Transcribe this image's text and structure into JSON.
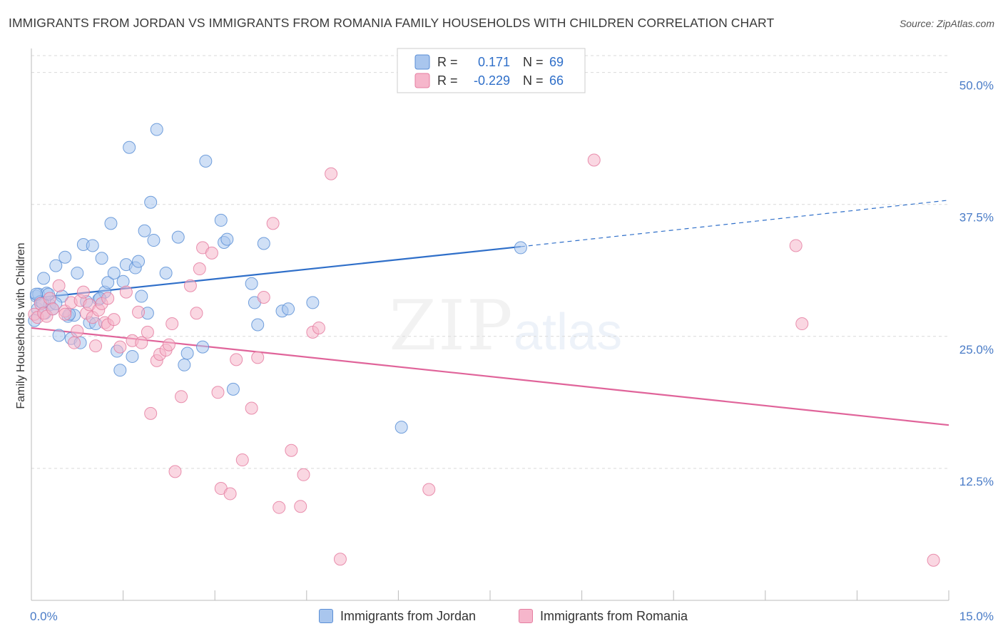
{
  "title": "IMMIGRANTS FROM JORDAN VS IMMIGRANTS FROM ROMANIA FAMILY HOUSEHOLDS WITH CHILDREN CORRELATION CHART",
  "source": "Source: ZipAtlas.com",
  "watermark": {
    "zip": "ZIP",
    "atlas": "atlas"
  },
  "colors": {
    "jordan_fill": "#a9c6ee",
    "jordan_stroke": "#5b8fd6",
    "jordan_line": "#2f6fc9",
    "romania_fill": "#f6b6cb",
    "romania_stroke": "#e57ea1",
    "romania_line": "#e0649a",
    "grid": "#d9d9d9",
    "tick_text": "#4a7cc7"
  },
  "legend": {
    "rows": [
      {
        "r_label": "R =",
        "r_value": "0.171",
        "n_label": "N =",
        "n_value": "69"
      },
      {
        "r_label": "R =",
        "r_value": "-0.229",
        "n_label": "N =",
        "n_value": "66"
      }
    ]
  },
  "chart_data": {
    "type": "scatter",
    "ylabel": "Family Households with Children",
    "xlim": [
      0,
      15
    ],
    "ylim": [
      0,
      52
    ],
    "x_tick_labels": [
      {
        "value": 0,
        "label": "0.0%"
      },
      {
        "value": 15,
        "label": "15.0%"
      }
    ],
    "y_ticks": [
      {
        "value": 12.5,
        "label": "12.5%"
      },
      {
        "value": 25,
        "label": "25.0%"
      },
      {
        "value": 37.5,
        "label": "37.5%"
      },
      {
        "value": 50,
        "label": "50.0%"
      }
    ],
    "grid": "horizontal dashed",
    "legend_position": "top-center",
    "series": [
      {
        "name": "Immigrants from Jordan",
        "r": 0.171,
        "n": 69,
        "trend": {
          "x0": 0,
          "y0": 28.6,
          "x1": 8.0,
          "y1": 33.5,
          "dashed_to_x": 15,
          "dashed_to_y": 37.9
        },
        "points": [
          [
            0.05,
            26.5
          ],
          [
            0.08,
            28.8
          ],
          [
            0.1,
            27.6
          ],
          [
            0.12,
            29.0
          ],
          [
            0.15,
            28.3
          ],
          [
            0.2,
            30.5
          ],
          [
            0.22,
            27.2
          ],
          [
            0.25,
            29.1
          ],
          [
            0.3,
            28.0
          ],
          [
            0.35,
            27.6
          ],
          [
            0.4,
            31.7
          ],
          [
            0.45,
            25.1
          ],
          [
            0.5,
            28.8
          ],
          [
            0.55,
            32.5
          ],
          [
            0.6,
            26.9
          ],
          [
            0.65,
            24.8
          ],
          [
            0.7,
            27.0
          ],
          [
            0.75,
            31.0
          ],
          [
            0.8,
            24.4
          ],
          [
            0.85,
            33.7
          ],
          [
            0.9,
            28.3
          ],
          [
            0.95,
            26.3
          ],
          [
            1.0,
            33.6
          ],
          [
            1.05,
            26.2
          ],
          [
            1.1,
            28.5
          ],
          [
            1.15,
            32.4
          ],
          [
            1.2,
            29.2
          ],
          [
            1.25,
            30.1
          ],
          [
            1.3,
            35.7
          ],
          [
            1.35,
            31.0
          ],
          [
            1.4,
            23.6
          ],
          [
            1.45,
            21.8
          ],
          [
            1.5,
            30.2
          ],
          [
            1.55,
            31.8
          ],
          [
            1.6,
            42.9
          ],
          [
            1.65,
            23.1
          ],
          [
            1.7,
            31.5
          ],
          [
            1.75,
            32.1
          ],
          [
            1.8,
            28.8
          ],
          [
            1.85,
            35.0
          ],
          [
            1.9,
            27.2
          ],
          [
            1.95,
            37.7
          ],
          [
            2.0,
            34.1
          ],
          [
            2.05,
            44.6
          ],
          [
            2.2,
            31.0
          ],
          [
            2.4,
            34.4
          ],
          [
            2.5,
            22.3
          ],
          [
            2.55,
            23.4
          ],
          [
            2.8,
            24.0
          ],
          [
            2.85,
            41.6
          ],
          [
            3.1,
            36.0
          ],
          [
            3.15,
            33.9
          ],
          [
            3.2,
            34.2
          ],
          [
            3.3,
            20.0
          ],
          [
            3.6,
            30.0
          ],
          [
            3.65,
            28.2
          ],
          [
            3.7,
            26.1
          ],
          [
            3.8,
            33.8
          ],
          [
            4.1,
            27.4
          ],
          [
            4.2,
            27.6
          ],
          [
            4.6,
            28.2
          ],
          [
            6.05,
            16.4
          ],
          [
            0.18,
            28.2
          ],
          [
            1.12,
            28.6
          ],
          [
            0.62,
            27.1
          ],
          [
            8.0,
            33.4
          ],
          [
            0.28,
            29.0
          ],
          [
            0.4,
            28.1
          ],
          [
            0.08,
            29.0
          ]
        ]
      },
      {
        "name": "Immigrants from Romania",
        "r": -0.229,
        "n": 66,
        "trend": {
          "x0": 0,
          "y0": 25.8,
          "x1": 15,
          "y1": 16.6
        },
        "points": [
          [
            0.05,
            27.1
          ],
          [
            0.1,
            26.8
          ],
          [
            0.15,
            28.1
          ],
          [
            0.2,
            27.2
          ],
          [
            0.25,
            26.9
          ],
          [
            0.3,
            28.6
          ],
          [
            0.35,
            27.6
          ],
          [
            0.45,
            29.8
          ],
          [
            0.55,
            27.4
          ],
          [
            0.65,
            28.2
          ],
          [
            0.7,
            24.4
          ],
          [
            0.75,
            25.5
          ],
          [
            0.8,
            28.4
          ],
          [
            0.85,
            29.2
          ],
          [
            0.9,
            27.2
          ],
          [
            0.95,
            28.0
          ],
          [
            1.0,
            26.8
          ],
          [
            1.05,
            24.1
          ],
          [
            1.1,
            27.5
          ],
          [
            1.15,
            28.1
          ],
          [
            1.2,
            26.3
          ],
          [
            1.25,
            26.1
          ],
          [
            1.35,
            26.6
          ],
          [
            1.45,
            24.0
          ],
          [
            1.55,
            29.2
          ],
          [
            1.65,
            24.6
          ],
          [
            1.75,
            27.3
          ],
          [
            1.8,
            24.4
          ],
          [
            1.9,
            25.4
          ],
          [
            1.95,
            17.7
          ],
          [
            2.05,
            22.7
          ],
          [
            2.1,
            23.3
          ],
          [
            2.2,
            23.7
          ],
          [
            2.25,
            24.2
          ],
          [
            2.3,
            26.2
          ],
          [
            2.35,
            12.2
          ],
          [
            2.45,
            19.3
          ],
          [
            2.6,
            29.8
          ],
          [
            2.7,
            27.2
          ],
          [
            2.75,
            31.4
          ],
          [
            2.8,
            33.4
          ],
          [
            2.95,
            32.9
          ],
          [
            3.05,
            19.7
          ],
          [
            3.1,
            10.6
          ],
          [
            3.25,
            10.1
          ],
          [
            3.35,
            22.8
          ],
          [
            3.45,
            13.3
          ],
          [
            3.6,
            18.2
          ],
          [
            3.7,
            23.0
          ],
          [
            3.8,
            28.7
          ],
          [
            3.95,
            35.7
          ],
          [
            4.05,
            8.8
          ],
          [
            4.25,
            14.2
          ],
          [
            4.4,
            8.9
          ],
          [
            4.45,
            11.9
          ],
          [
            4.6,
            25.4
          ],
          [
            4.7,
            25.8
          ],
          [
            4.9,
            40.4
          ],
          [
            5.05,
            3.9
          ],
          [
            6.5,
            10.5
          ],
          [
            9.2,
            41.7
          ],
          [
            12.5,
            33.6
          ],
          [
            12.6,
            26.2
          ],
          [
            14.75,
            3.8
          ],
          [
            0.55,
            27.1
          ],
          [
            1.25,
            28.6
          ]
        ]
      }
    ]
  }
}
